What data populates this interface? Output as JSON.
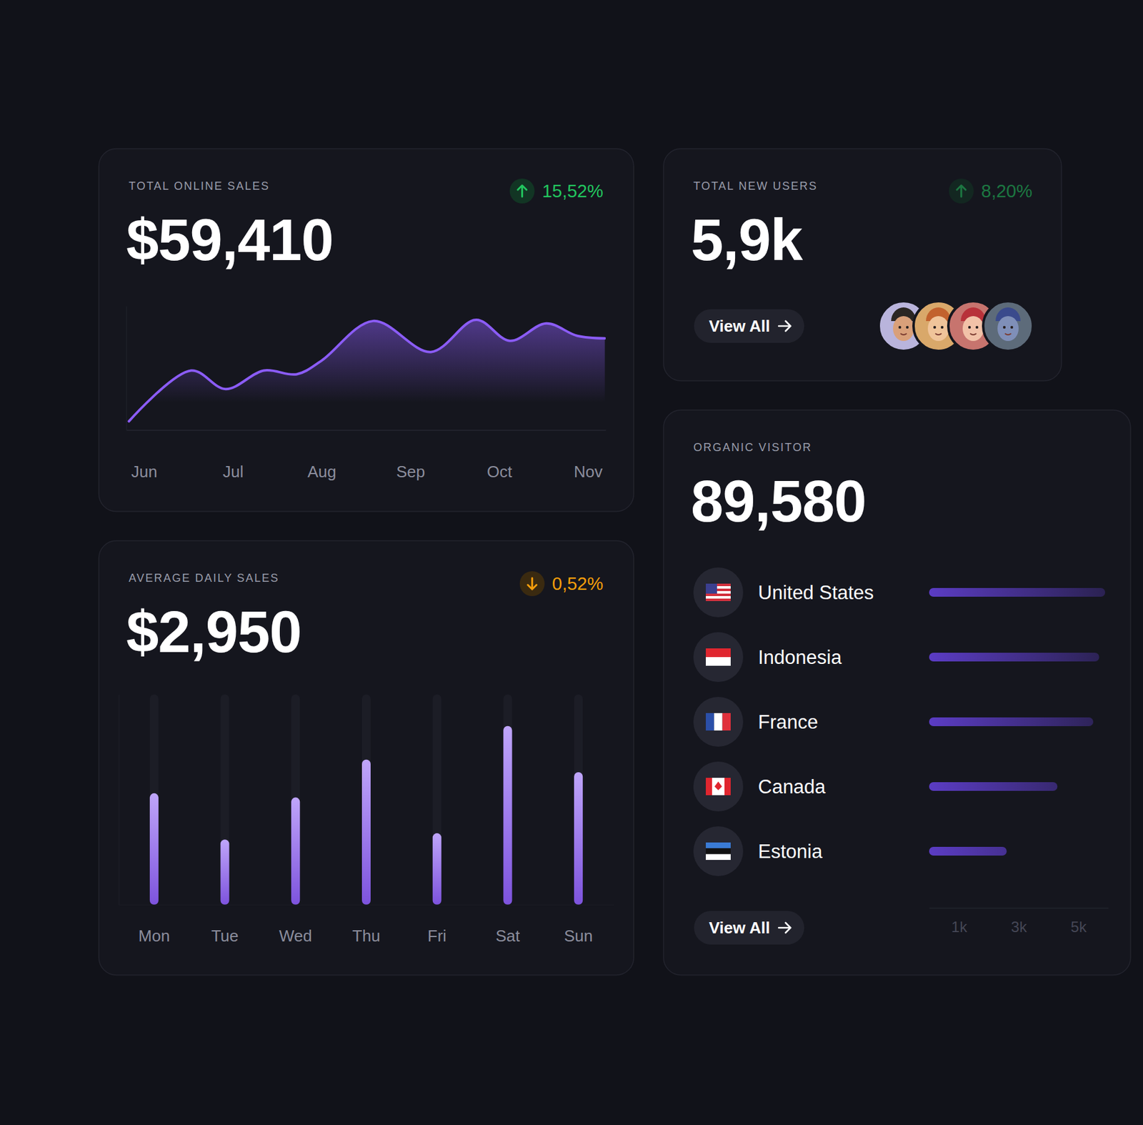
{
  "chart_data": [
    {
      "type": "area",
      "title": "TOTAL ONLINE SALES",
      "subtitle": "$59,410",
      "annotations": [
        {
          "text": "15,52%",
          "direction": "up"
        }
      ],
      "x": [
        -0.17,
        0.53,
        0.92,
        1.35,
        1.72,
        2.0,
        2.58,
        3.23,
        3.74,
        4.12,
        4.53,
        4.88,
        5.19
      ],
      "values": [
        7,
        48,
        33,
        48,
        45,
        56,
        88,
        63,
        89,
        72,
        86,
        76,
        74
      ],
      "color": "#8b5cf6",
      "xlim": [
        -0.2,
        5.2
      ],
      "xticks": [
        {
          "value": 0,
          "label": "Jun"
        },
        {
          "value": 1,
          "label": "Jul"
        },
        {
          "value": 2,
          "label": "Aug"
        },
        {
          "value": 3,
          "label": "Sep"
        },
        {
          "value": 4,
          "label": "Oct"
        },
        {
          "value": 5,
          "label": "Nov"
        }
      ],
      "ylim": [
        0,
        100
      ],
      "tick_labels": "x"
    },
    {
      "type": "bar",
      "title": "AVERAGE DAILY SALES",
      "subtitle": "$2,950",
      "annotations": [
        {
          "text": "0,52%",
          "direction": "down"
        }
      ],
      "categories": [
        "Mon",
        "Tue",
        "Wed",
        "Thu",
        "Fri",
        "Sat",
        "Sun"
      ],
      "values": [
        53,
        31,
        51,
        69,
        34,
        85,
        63
      ],
      "color": "#8b5cf6",
      "ylim": [
        0,
        100
      ],
      "tick_labels": "x"
    },
    {
      "type": "bar",
      "orientation": "horizontal",
      "title": "ORGANIC VISITOR",
      "subtitle": "89,580",
      "annotations": [
        {
          "text": "View All"
        }
      ],
      "categories": [
        "United States",
        "Indonesia",
        "France",
        "Canada",
        "Estonia"
      ],
      "values": [
        5900,
        5700,
        5500,
        4300,
        2600
      ],
      "color": "#5b3cc4",
      "xlim": [
        0,
        6000
      ],
      "xticks": [
        {
          "value": 1000,
          "label": "1k"
        },
        {
          "value": 3000,
          "label": "3k"
        },
        {
          "value": 5000,
          "label": "5k"
        }
      ]
    }
  ],
  "cards": [
    {
      "title": "TOTAL NEW USERS",
      "value": "5,9k",
      "change": {
        "text": "8,20%",
        "direction": "up"
      },
      "button": "View All"
    }
  ]
}
